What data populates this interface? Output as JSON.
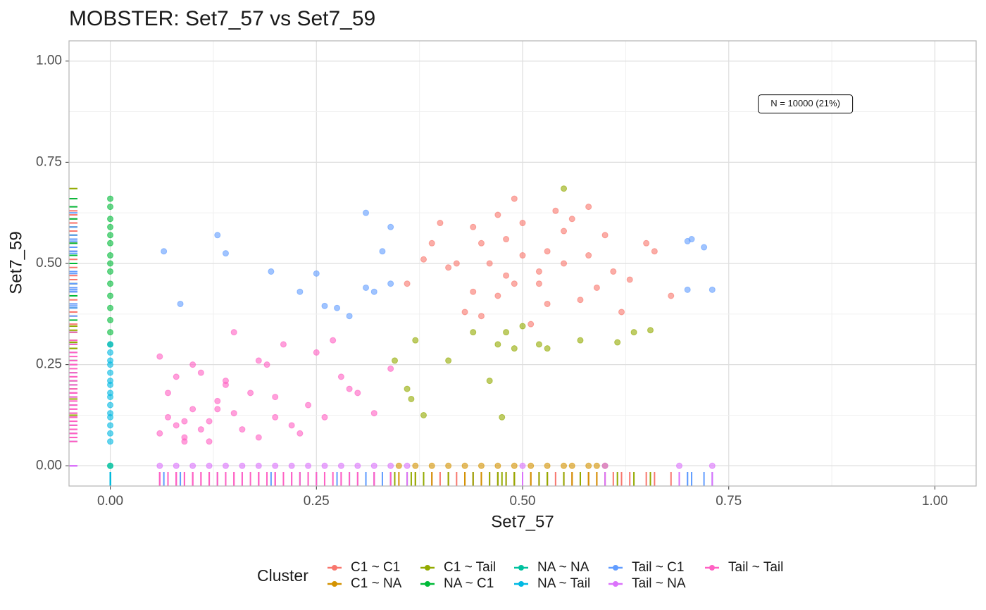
{
  "chart_data": {
    "type": "scatter",
    "title": "MOBSTER: Set7_57 vs Set7_59",
    "x_label": "Set7_57",
    "y_label": "Set7_59",
    "annotation": {
      "text": "N = 10000 (21%)",
      "x": 0.843,
      "y": 0.894
    },
    "legend_title": "Cluster",
    "legend_position": "bottom",
    "grid": true,
    "rug": true,
    "xlim": [
      -0.05,
      1.05
    ],
    "ylim": [
      -0.05,
      1.05
    ],
    "xticks": [
      {
        "value": 0,
        "label": "0.00"
      },
      {
        "value": 0.25,
        "label": "0.25"
      },
      {
        "value": 0.5,
        "label": "0.50"
      },
      {
        "value": 0.75,
        "label": "0.75"
      },
      {
        "value": 1,
        "label": "1.00"
      }
    ],
    "yticks": [
      {
        "value": 0,
        "label": "0.00"
      },
      {
        "value": 0.25,
        "label": "0.25"
      },
      {
        "value": 0.5,
        "label": "0.50"
      },
      {
        "value": 0.75,
        "label": "0.75"
      },
      {
        "value": 1,
        "label": "1.00"
      }
    ],
    "series": [
      {
        "name": "C1 ~ C1",
        "color": "#F8766D",
        "x": [
          0.42,
          0.45,
          0.48,
          0.5,
          0.52,
          0.55,
          0.47,
          0.53,
          0.44,
          0.58,
          0.61,
          0.39,
          0.36,
          0.4,
          0.43,
          0.46,
          0.49,
          0.51,
          0.54,
          0.57,
          0.6,
          0.63,
          0.66,
          0.68,
          0.41,
          0.45,
          0.5,
          0.55,
          0.59,
          0.48,
          0.52,
          0.47,
          0.56,
          0.38,
          0.62,
          0.65,
          0.44,
          0.53,
          0.49,
          0.58
        ],
        "y": [
          0.5,
          0.55,
          0.47,
          0.52,
          0.45,
          0.58,
          0.62,
          0.4,
          0.43,
          0.52,
          0.48,
          0.55,
          0.45,
          0.6,
          0.38,
          0.5,
          0.66,
          0.35,
          0.63,
          0.41,
          0.57,
          0.46,
          0.53,
          0.42,
          0.49,
          0.37,
          0.6,
          0.5,
          0.44,
          0.56,
          0.48,
          0.42,
          0.61,
          0.51,
          0.38,
          0.55,
          0.59,
          0.53,
          0.45,
          0.64
        ]
      },
      {
        "name": "C1 ~ NA",
        "color": "#D39200",
        "x": [
          0.35,
          0.37,
          0.39,
          0.41,
          0.43,
          0.45,
          0.47,
          0.49,
          0.51,
          0.53,
          0.55,
          0.56,
          0.58,
          0.59,
          0.6
        ],
        "y": [
          0,
          0,
          0,
          0,
          0,
          0,
          0,
          0,
          0,
          0,
          0,
          0,
          0,
          0,
          0
        ]
      },
      {
        "name": "C1 ~ Tail",
        "color": "#93AA00",
        "x": [
          0.55,
          0.345,
          0.36,
          0.365,
          0.38,
          0.41,
          0.46,
          0.475,
          0.44,
          0.47,
          0.49,
          0.5,
          0.52,
          0.53,
          0.57,
          0.615,
          0.635,
          0.655,
          0.37,
          0.48
        ],
        "y": [
          0.685,
          0.26,
          0.19,
          0.165,
          0.125,
          0.26,
          0.21,
          0.12,
          0.33,
          0.3,
          0.29,
          0.345,
          0.3,
          0.29,
          0.31,
          0.305,
          0.33,
          0.335,
          0.31,
          0.33
        ]
      },
      {
        "name": "NA ~ C1",
        "color": "#00BA38",
        "x": [
          0,
          0,
          0,
          0,
          0,
          0,
          0,
          0,
          0,
          0,
          0,
          0,
          0,
          0,
          0
        ],
        "y": [
          0.3,
          0.33,
          0.36,
          0.39,
          0.42,
          0.45,
          0.48,
          0.5,
          0.52,
          0.55,
          0.57,
          0.59,
          0.61,
          0.64,
          0.66
        ]
      },
      {
        "name": "NA ~ NA",
        "color": "#00C19F",
        "x": [
          0,
          0
        ],
        "y": [
          0,
          0
        ]
      },
      {
        "name": "NA ~ Tail",
        "color": "#00B9E3",
        "x": [
          0,
          0,
          0,
          0,
          0,
          0,
          0,
          0,
          0,
          0,
          0,
          0,
          0,
          0,
          0
        ],
        "y": [
          0.06,
          0.08,
          0.1,
          0.12,
          0.13,
          0.15,
          0.17,
          0.18,
          0.2,
          0.21,
          0.23,
          0.25,
          0.26,
          0.28,
          0.3
        ]
      },
      {
        "name": "Tail ~ C1",
        "color": "#619CFF",
        "x": [
          0.065,
          0.085,
          0.13,
          0.14,
          0.195,
          0.23,
          0.25,
          0.26,
          0.275,
          0.29,
          0.31,
          0.31,
          0.32,
          0.33,
          0.34,
          0.34,
          0.7,
          0.705,
          0.72,
          0.73,
          0.7
        ],
        "y": [
          0.53,
          0.4,
          0.57,
          0.525,
          0.48,
          0.43,
          0.475,
          0.395,
          0.39,
          0.37,
          0.625,
          0.44,
          0.43,
          0.53,
          0.59,
          0.45,
          0.555,
          0.56,
          0.54,
          0.435,
          0.435
        ]
      },
      {
        "name": "Tail ~ NA",
        "color": "#DB72FB",
        "x": [
          0.06,
          0.08,
          0.1,
          0.12,
          0.14,
          0.16,
          0.18,
          0.2,
          0.22,
          0.24,
          0.26,
          0.28,
          0.3,
          0.32,
          0.34,
          0.36,
          0.5,
          0.6,
          0.69,
          0.73
        ],
        "y": [
          0,
          0,
          0,
          0,
          0,
          0,
          0,
          0,
          0,
          0,
          0,
          0,
          0,
          0,
          0,
          0,
          0,
          0,
          0,
          0
        ]
      },
      {
        "name": "Tail ~ Tail",
        "color": "#FF61C3",
        "x": [
          0.06,
          0.07,
          0.08,
          0.09,
          0.1,
          0.11,
          0.12,
          0.07,
          0.09,
          0.13,
          0.15,
          0.08,
          0.1,
          0.06,
          0.14,
          0.16,
          0.18,
          0.2,
          0.11,
          0.12,
          0.17,
          0.19,
          0.22,
          0.24,
          0.21,
          0.23,
          0.26,
          0.28,
          0.3,
          0.25,
          0.27,
          0.13,
          0.15,
          0.09,
          0.32,
          0.34,
          0.18,
          0.2,
          0.14,
          0.29
        ],
        "y": [
          0.08,
          0.12,
          0.1,
          0.07,
          0.14,
          0.09,
          0.11,
          0.18,
          0.06,
          0.16,
          0.13,
          0.22,
          0.25,
          0.27,
          0.2,
          0.09,
          0.07,
          0.12,
          0.23,
          0.06,
          0.18,
          0.25,
          0.1,
          0.15,
          0.3,
          0.08,
          0.12,
          0.22,
          0.18,
          0.28,
          0.31,
          0.14,
          0.33,
          0.11,
          0.13,
          0.24,
          0.26,
          0.17,
          0.21,
          0.19
        ]
      }
    ]
  }
}
